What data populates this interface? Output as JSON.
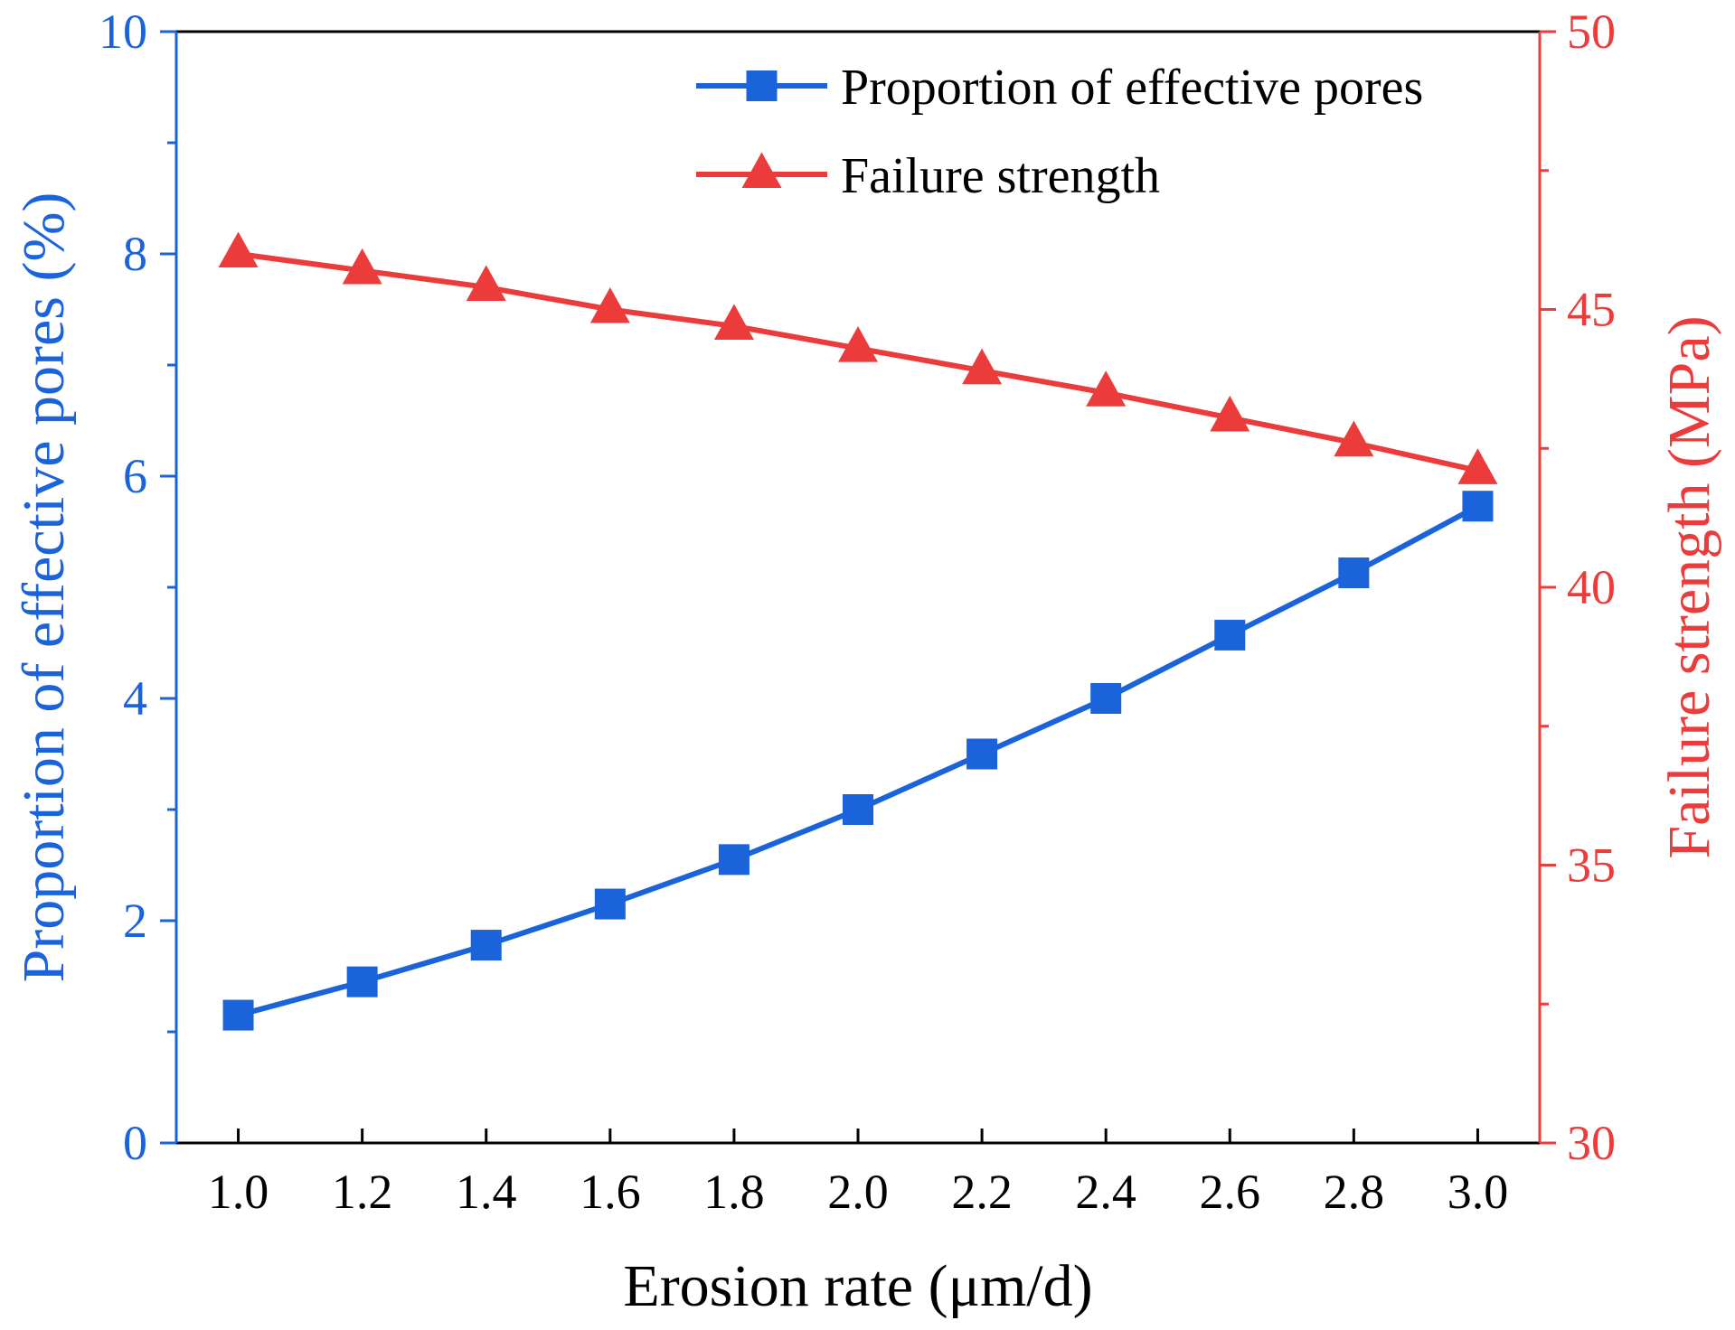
{
  "chart_data": {
    "type": "line",
    "title": "",
    "xlabel": "Erosion rate (μm/d)",
    "ylabel_left": "Proportion of effective pores (%)",
    "ylabel_right": "Failure strength (MPa)",
    "xlim": [
      0.9,
      3.1
    ],
    "ylim_left": [
      0,
      10
    ],
    "ylim_right": [
      30,
      50
    ],
    "x_ticks": [
      1.0,
      1.2,
      1.4,
      1.6,
      1.8,
      2.0,
      2.2,
      2.4,
      2.6,
      2.8,
      3.0
    ],
    "x_tick_labels": [
      "1.0",
      "1.2",
      "1.4",
      "1.6",
      "1.8",
      "2.0",
      "2.2",
      "2.4",
      "2.6",
      "2.8",
      "3.0"
    ],
    "y_left_ticks": [
      0,
      2,
      4,
      6,
      8,
      10
    ],
    "y_left_tick_labels": [
      "0",
      "2",
      "4",
      "6",
      "8",
      "10"
    ],
    "y_right_ticks": [
      30,
      35,
      40,
      45,
      50
    ],
    "y_right_tick_labels": [
      "30",
      "35",
      "40",
      "45",
      "50"
    ],
    "legend_position": "top-right",
    "grid": false,
    "x": [
      1.0,
      1.2,
      1.4,
      1.6,
      1.8,
      2.0,
      2.2,
      2.4,
      2.6,
      2.8,
      3.0
    ],
    "series": [
      {
        "name": "Proportion of effective pores",
        "axis": "left",
        "marker": "square",
        "color": "#1a63db",
        "values": [
          1.15,
          1.45,
          1.78,
          2.15,
          2.55,
          3.0,
          3.5,
          4.0,
          4.57,
          5.13,
          5.73
        ]
      },
      {
        "name": "Failure strength",
        "axis": "right",
        "marker": "triangle",
        "color": "#ec3b3b",
        "values": [
          46.0,
          45.7,
          45.4,
          45.0,
          44.7,
          44.3,
          43.9,
          43.5,
          43.05,
          42.6,
          42.1
        ]
      }
    ],
    "colors": {
      "left_axis": "#1a63db",
      "right_axis": "#ec3b3b",
      "bottom_axis": "#000000"
    }
  }
}
